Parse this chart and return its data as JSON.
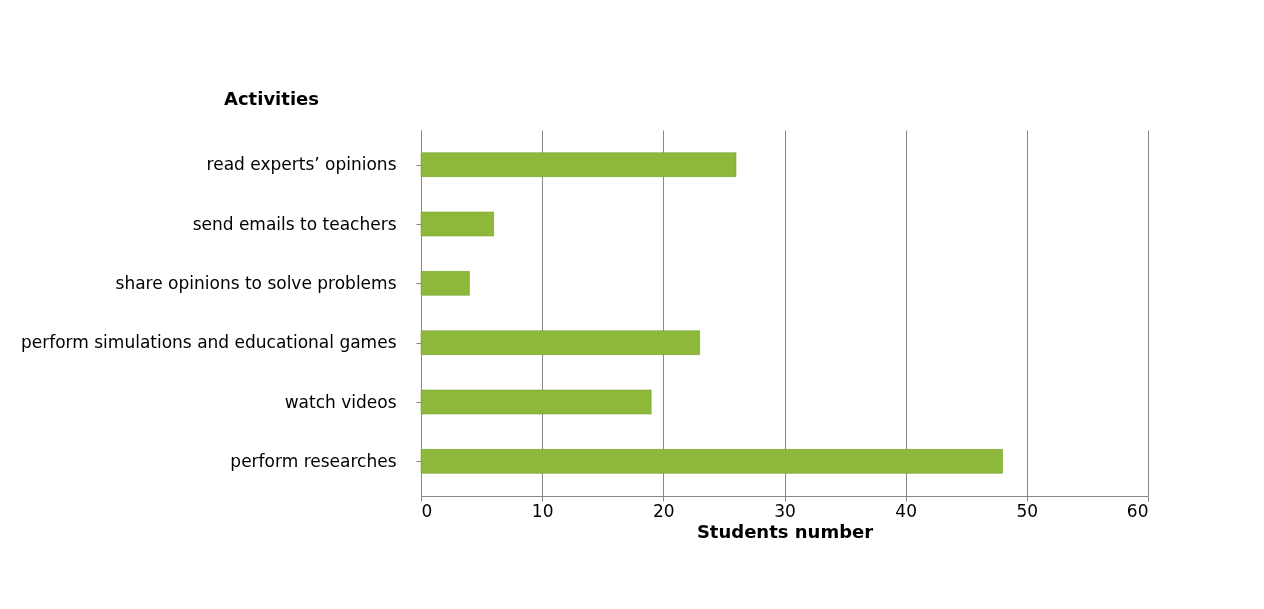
{
  "chart_data": {
    "type": "bar",
    "orientation": "horizontal",
    "xlabel": "Students number",
    "ylabel": "Activities",
    "categories": [
      "read experts’ opinions",
      "send emails to teachers",
      "share opinions to solve problems",
      "perform simulations and educational games",
      "watch videos",
      "perform researches"
    ],
    "values": [
      26,
      6,
      4,
      23,
      19,
      48
    ],
    "color": "#8db83a",
    "xlim": [
      0,
      60
    ],
    "xticks": [
      0,
      10,
      20,
      30,
      40,
      50,
      60
    ],
    "grid": "x"
  }
}
